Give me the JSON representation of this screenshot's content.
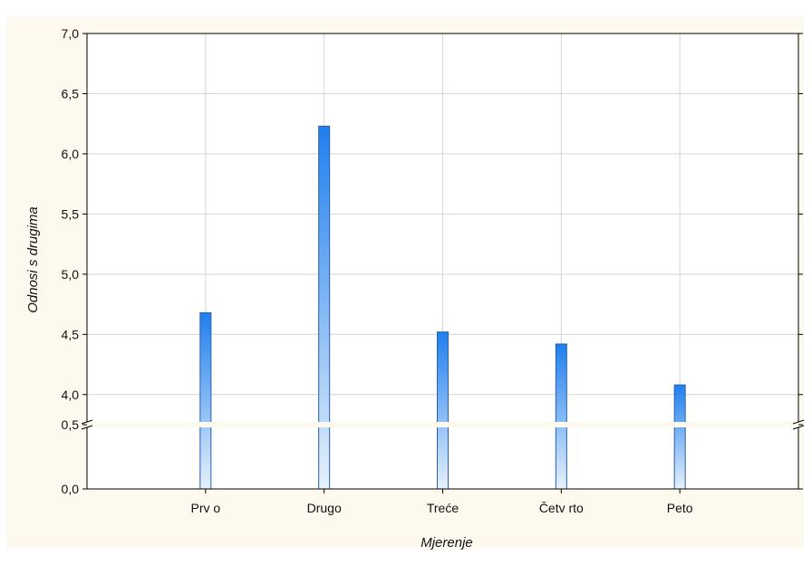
{
  "chart_data": {
    "type": "bar",
    "xlabel": "Mjerenje",
    "ylabel": "Odnosi s drugima",
    "categories": [
      "Prv o",
      "Drugo",
      "Treće",
      "Četv rto",
      "Peto"
    ],
    "values": [
      4.68,
      6.23,
      4.52,
      4.42,
      4.08
    ],
    "axis_break": true,
    "y_ticks_upper": [
      "4,0",
      "4,5",
      "5,0",
      "5,5",
      "6,0",
      "6,5",
      "7,0"
    ],
    "y_tick_values_upper": [
      4.0,
      4.5,
      5.0,
      5.5,
      6.0,
      6.5,
      7.0
    ],
    "y_ticks_lower": [
      "0,0",
      "0,5"
    ],
    "y_tick_values_lower": [
      0.0,
      0.5
    ],
    "ylim_upper": [
      3.75,
      7.0
    ],
    "ylim_lower": [
      0.0,
      0.5
    ],
    "grid": true,
    "colors": {
      "background": "#fdf9ef",
      "plot_background": "#ffffff",
      "bar_top": "#1f7fee",
      "bar_bottom": "#e6f1fc",
      "bar_border": "#2a5fa8",
      "grid": "#d4d4d4"
    }
  }
}
